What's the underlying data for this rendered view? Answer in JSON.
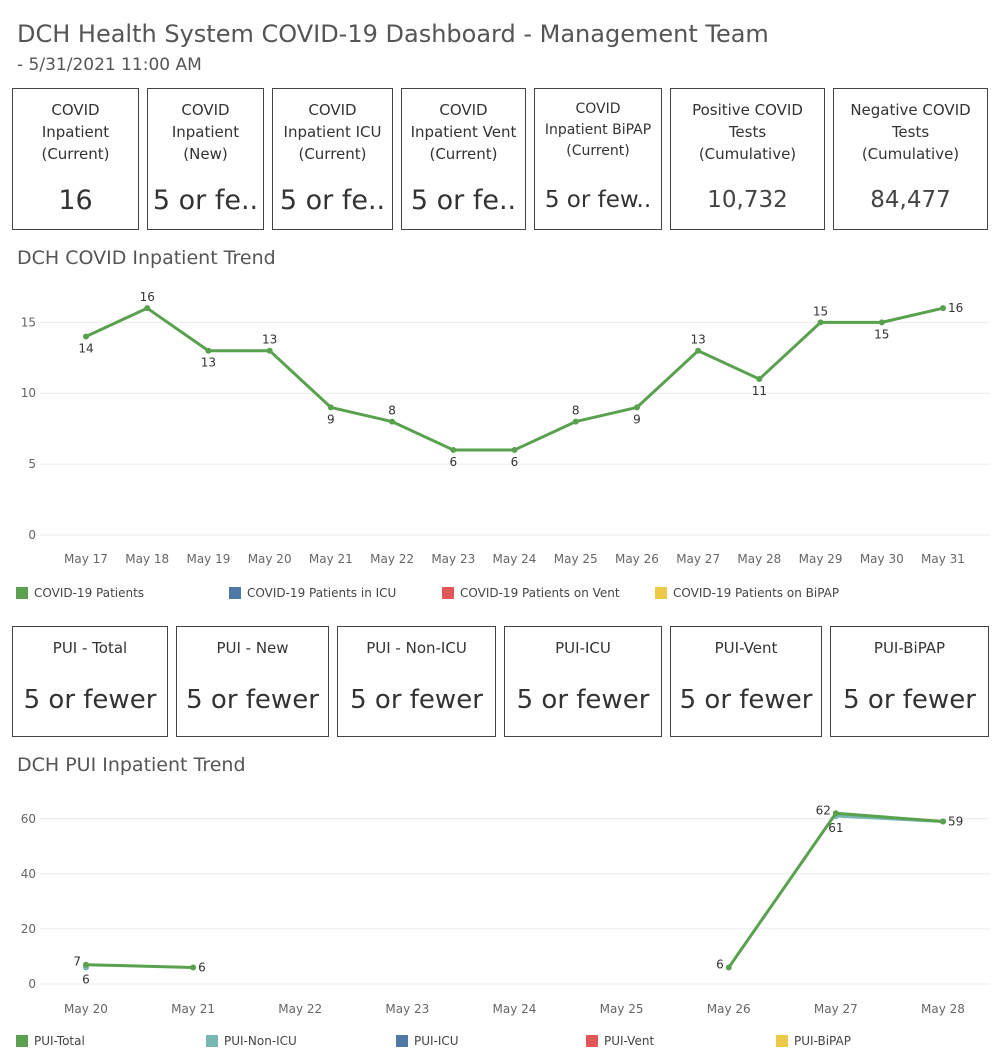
{
  "header": {
    "title": "DCH Health System COVID-19 Dashboard - Management Team",
    "subtitle": "- 5/31/2021 11:00 AM"
  },
  "kpis_top": [
    {
      "label": "COVID\nInpatient\n(Current)",
      "value": "16"
    },
    {
      "label": "COVID\nInpatient\n(New)",
      "value": "5 or fe.."
    },
    {
      "label": "COVID\nInpatient ICU\n(Current)",
      "value": "5 or fe.."
    },
    {
      "label": "COVID\nInpatient Vent\n(Current)",
      "value": "5 or fe.."
    },
    {
      "label": "COVID\nInpatient BiPAP\n(Current)",
      "value": "5 or few.."
    },
    {
      "label": "Positive COVID\nTests\n(Cumulative)",
      "value": "10,732"
    },
    {
      "label": "Negative COVID\nTests\n(Cumulative)",
      "value": "84,477"
    }
  ],
  "kpis_pui": [
    {
      "label": "PUI - Total",
      "value": "5 or fewer"
    },
    {
      "label": "PUI - New",
      "value": "5 or fewer"
    },
    {
      "label": "PUI - Non-ICU",
      "value": "5 or fewer"
    },
    {
      "label": "PUI-ICU",
      "value": "5 or fewer"
    },
    {
      "label": "PUI-Vent",
      "value": "5 or fewer"
    },
    {
      "label": "PUI-BiPAP",
      "value": "5 or fewer"
    }
  ],
  "colors": {
    "green": "#59a14f",
    "teal": "#76b7b2",
    "blue": "#4e79a7",
    "red": "#e15759",
    "yellow": "#edc948",
    "grid": "#ebebeb",
    "axis_text": "#666666"
  },
  "chart_data": [
    {
      "type": "line",
      "title": "DCH COVID Inpatient Trend",
      "categories": [
        "May 17",
        "May 18",
        "May 19",
        "May 20",
        "May 21",
        "May 22",
        "May 23",
        "May 24",
        "May 25",
        "May 26",
        "May 27",
        "May 28",
        "May 29",
        "May 30",
        "May 31"
      ],
      "ylim": [
        0,
        17
      ],
      "yticks": [
        0,
        5,
        10,
        15
      ],
      "grid": true,
      "legend_position": "bottom",
      "legend": [
        {
          "name": "COVID-19 Patients",
          "color": "#59a14f"
        },
        {
          "name": "COVID-19 Patients in ICU",
          "color": "#4e79a7"
        },
        {
          "name": "COVID-19 Patients on Vent",
          "color": "#e15759"
        },
        {
          "name": "COVID-19 Patients on BiPAP",
          "color": "#edc948"
        }
      ],
      "series": [
        {
          "name": "COVID-19 Patients",
          "color": "#59a14f",
          "values": [
            14,
            16,
            13,
            13,
            9,
            8,
            6,
            6,
            8,
            9,
            13,
            11,
            15,
            15,
            16
          ],
          "label_pos": [
            "below",
            "above",
            "below",
            "above",
            "below",
            "above",
            "below",
            "below",
            "above",
            "below",
            "above",
            "below",
            "above",
            "below",
            "right"
          ]
        }
      ]
    },
    {
      "type": "line",
      "title": "DCH PUI Inpatient Trend",
      "categories": [
        "May 20",
        "May 21",
        "May 22",
        "May 23",
        "May 24",
        "May 25",
        "May 26",
        "May 27",
        "May 28"
      ],
      "ylim": [
        0,
        65
      ],
      "yticks": [
        0,
        20,
        40,
        60
      ],
      "grid": true,
      "legend_position": "bottom",
      "legend": [
        {
          "name": "PUI-Total",
          "color": "#59a14f"
        },
        {
          "name": "PUI-Non-ICU",
          "color": "#76b7b2"
        },
        {
          "name": "PUI-ICU",
          "color": "#4e79a7"
        },
        {
          "name": "PUI-Vent",
          "color": "#e15759"
        },
        {
          "name": "PUI-BiPAP",
          "color": "#edc948"
        }
      ],
      "series": [
        {
          "name": "PUI-Non-ICU",
          "color": "#76b7b2",
          "values": [
            6,
            null,
            null,
            null,
            null,
            null,
            null,
            61,
            59
          ],
          "label_pos": [
            "below",
            null,
            null,
            null,
            null,
            null,
            null,
            "below",
            null
          ]
        },
        {
          "name": "PUI-Total",
          "color": "#59a14f",
          "values": [
            7,
            6,
            null,
            null,
            null,
            null,
            6,
            62,
            59
          ],
          "label_pos": [
            "left",
            "right",
            null,
            null,
            null,
            null,
            "left",
            "left",
            "right"
          ]
        }
      ]
    }
  ]
}
